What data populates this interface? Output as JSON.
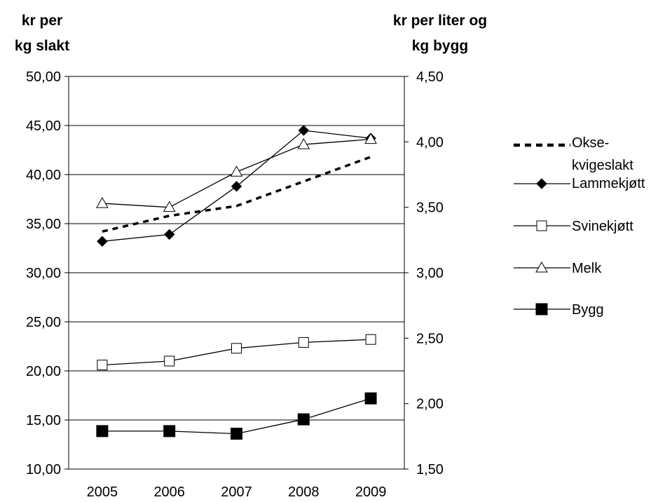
{
  "chart_data": {
    "type": "line",
    "title": "",
    "ylabel_left": [
      "kr per",
      "kg slakt"
    ],
    "ylabel_right": [
      "kr per liter og",
      "kg bygg"
    ],
    "categories": [
      "2005",
      "2006",
      "2007",
      "2008",
      "2009"
    ],
    "ylim_left": [
      10,
      50
    ],
    "ylim_right": [
      1.5,
      4.5
    ],
    "y_ticks_left": [
      "10,00",
      "15,00",
      "20,00",
      "25,00",
      "30,00",
      "35,00",
      "40,00",
      "45,00",
      "50,00"
    ],
    "y_ticks_right": [
      "1,50",
      "2,00",
      "2,50",
      "3,00",
      "3,50",
      "4,00",
      "4,50"
    ],
    "grid": true,
    "legend_position": "right",
    "series": [
      {
        "name": "Okse-kvigeslakt",
        "legend_lines": [
          "Okse-",
          "kvigeslakt"
        ],
        "axis": "left",
        "style": "dashed",
        "marker": "none",
        "values": [
          34.2,
          35.8,
          36.8,
          39.3,
          41.8
        ]
      },
      {
        "name": "Lammekjøtt",
        "legend_lines": [
          "Lammekjøtt"
        ],
        "axis": "left",
        "style": "solid",
        "marker": "diamond",
        "values": [
          33.2,
          33.9,
          38.8,
          44.5,
          43.7
        ]
      },
      {
        "name": "Svinekjøtt",
        "legend_lines": [
          "Svinekjøtt"
        ],
        "axis": "left",
        "style": "solid",
        "marker": "open-square",
        "values": [
          20.6,
          21.0,
          22.3,
          22.9,
          23.2
        ]
      },
      {
        "name": "Melk",
        "legend_lines": [
          "Melk"
        ],
        "axis": "right",
        "style": "solid",
        "marker": "open-triangle",
        "values": [
          3.53,
          3.5,
          3.77,
          3.98,
          4.02
        ]
      },
      {
        "name": "Bygg",
        "legend_lines": [
          "Bygg"
        ],
        "axis": "right",
        "style": "solid",
        "marker": "filled-square",
        "values": [
          1.79,
          1.79,
          1.77,
          1.88,
          2.04
        ]
      }
    ]
  }
}
